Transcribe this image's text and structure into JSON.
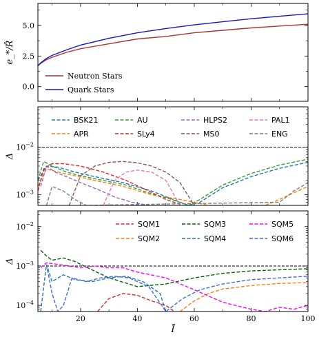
{
  "chart_data": [
    {
      "type": "line",
      "ylabel": "e_*/R̂",
      "xlim": [
        5,
        100
      ],
      "ylim": [
        -1.2,
        6.8
      ],
      "yticks": [
        -0.0,
        2.5,
        5.0
      ],
      "ytick_labels": [
        "0.0",
        "2.5",
        "5.0"
      ],
      "legend": "lower-left",
      "series": [
        {
          "name": "Neutron Stars",
          "color": "#a83232",
          "x": [
            5,
            6,
            8,
            10,
            15,
            20,
            30,
            40,
            50,
            60,
            70,
            80,
            90,
            100
          ],
          "y": [
            1.7,
            1.9,
            2.2,
            2.4,
            2.8,
            3.1,
            3.5,
            3.9,
            4.1,
            4.4,
            4.6,
            4.8,
            4.95,
            5.1
          ]
        },
        {
          "name": "Quark Stars",
          "color": "#1515c8",
          "x": [
            5,
            6,
            8,
            10,
            15,
            20,
            30,
            40,
            50,
            60,
            70,
            80,
            90,
            100
          ],
          "y": [
            1.7,
            1.95,
            2.3,
            2.55,
            3.0,
            3.4,
            3.95,
            4.4,
            4.75,
            5.05,
            5.3,
            5.55,
            5.75,
            5.95
          ]
        }
      ]
    },
    {
      "type": "line",
      "ylabel": "Δ",
      "yscale": "log",
      "xlim": [
        5,
        100
      ],
      "ylim": [
        0.0006,
        0.07
      ],
      "ytick_labels": [
        "10^-3",
        "10^-2"
      ],
      "reference_line": 0.01,
      "legend": "top",
      "series": [
        {
          "name": "BSK21",
          "color": "#1f77b4",
          "x": [
            5,
            8,
            12,
            18,
            25,
            35,
            45,
            55,
            58,
            62,
            70,
            80,
            90,
            100
          ],
          "y": [
            0.002,
            0.004,
            0.0038,
            0.003,
            0.0024,
            0.0018,
            0.0012,
            0.0007,
            0.0006,
            0.0007,
            0.0014,
            0.0024,
            0.0036,
            0.0048
          ]
        },
        {
          "name": "APR",
          "color": "#ff7f0e",
          "x": [
            5,
            8,
            12,
            18,
            25,
            35,
            45,
            55,
            65,
            75,
            85,
            90,
            95,
            100
          ],
          "y": [
            0.0015,
            0.0035,
            0.003,
            0.0025,
            0.002,
            0.0015,
            0.001,
            0.0008,
            0.0006,
            0.0006,
            0.0006,
            0.0008,
            0.0011,
            0.0015
          ]
        },
        {
          "name": "AU",
          "color": "#2ca02c",
          "x": [
            5,
            7,
            10,
            15,
            20,
            28,
            36,
            44,
            52,
            58,
            62,
            70,
            80,
            90,
            100
          ],
          "y": [
            0.002,
            0.005,
            0.004,
            0.003,
            0.0025,
            0.002,
            0.0016,
            0.0011,
            0.0008,
            0.0006,
            0.0008,
            0.0016,
            0.0028,
            0.0042,
            0.0056
          ]
        },
        {
          "name": "SLy4",
          "color": "#d62728",
          "x": [
            5,
            7,
            10,
            14,
            20,
            28,
            36,
            44,
            50,
            56
          ],
          "y": [
            0.0012,
            0.0035,
            0.0045,
            0.0045,
            0.004,
            0.003,
            0.002,
            0.0012,
            0.0008,
            0.0006
          ]
        },
        {
          "name": "HLPS2",
          "color": "#9467bd",
          "x": [
            6,
            8,
            11,
            15,
            20,
            26,
            32,
            38,
            44
          ],
          "y": [
            0.0015,
            0.004,
            0.003,
            0.0024,
            0.0018,
            0.0013,
            0.0009,
            0.0007,
            0.0006
          ]
        },
        {
          "name": "MS0",
          "color": "#8c564b",
          "x": [
            16,
            20,
            25,
            30,
            35,
            40,
            45,
            50,
            55,
            60
          ],
          "y": [
            0.0006,
            0.0025,
            0.004,
            0.0048,
            0.005,
            0.0047,
            0.004,
            0.003,
            0.0018,
            0.0006
          ]
        },
        {
          "name": "PAL1",
          "color": "#e377c2",
          "x": [
            28,
            32,
            36,
            40,
            45,
            50,
            55
          ],
          "y": [
            0.0006,
            0.002,
            0.003,
            0.0033,
            0.003,
            0.002,
            0.0006
          ]
        },
        {
          "name": "ENG",
          "color": "#7f7f7f",
          "x": [
            8,
            10,
            14,
            18,
            22,
            90,
            95,
            100
          ],
          "y": [
            0.0006,
            0.0015,
            0.0012,
            0.0008,
            0.0006,
            0.0007,
            0.0012,
            0.0018
          ]
        }
      ]
    },
    {
      "type": "line",
      "ylabel": "Δ",
      "xlabel": "Ī",
      "yscale": "log",
      "xlim": [
        5,
        100
      ],
      "ylim": [
        7e-05,
        0.025
      ],
      "xticks": [
        20,
        40,
        60,
        80,
        100
      ],
      "ytick_labels": [
        "10^-4",
        "10^-3",
        "10^-2"
      ],
      "reference_line": 0.001,
      "legend": "top-right",
      "series": [
        {
          "name": "SQM1",
          "color": "#d62728",
          "x": [
            26,
            30,
            35,
            40,
            45,
            50,
            53
          ],
          "y": [
            7e-05,
            0.00015,
            0.0002,
            0.00018,
            0.00013,
            0.0001,
            7e-05
          ]
        },
        {
          "name": "SQM2",
          "color": "#ff7f0e",
          "x": [
            55,
            60,
            65,
            70,
            80,
            90,
            100
          ],
          "y": [
            7e-05,
            0.00013,
            0.0002,
            0.00026,
            0.00032,
            0.00036,
            0.00038
          ]
        },
        {
          "name": "SQM3",
          "color": "#006400",
          "x": [
            6,
            8,
            10,
            14,
            18,
            24,
            30,
            40,
            50,
            60,
            70,
            80,
            90,
            100
          ],
          "y": [
            0.0025,
            0.0018,
            0.0014,
            0.0016,
            0.0013,
            0.0008,
            0.0005,
            0.0003,
            0.00035,
            0.0005,
            0.00065,
            0.00075,
            0.0008,
            0.00085
          ]
        },
        {
          "name": "SQM4",
          "color": "#1f77b4",
          "x": [
            6,
            8,
            10,
            14,
            18,
            24,
            30,
            36,
            42,
            48,
            50
          ],
          "y": [
            7e-05,
            0.0011,
            0.0004,
            0.0006,
            0.00045,
            0.0004,
            0.0005,
            0.00055,
            0.0004,
            0.0002,
            7e-05
          ]
        },
        {
          "name": "SQM5",
          "color": "#ff00ff",
          "x": [
            6,
            8,
            12,
            16,
            20,
            25,
            30,
            35,
            40,
            50,
            60,
            70,
            80,
            85,
            90,
            95,
            100
          ],
          "y": [
            0.0009,
            0.0012,
            0.0011,
            0.001,
            0.0009,
            0.001,
            0.0009,
            0.0009,
            0.0007,
            0.0005,
            0.00025,
            0.00012,
            8e-05,
            7e-05,
            9e-05,
            8e-05,
            0.0001
          ]
        },
        {
          "name": "SQM6",
          "color": "#4169e1",
          "x": [
            8,
            10,
            12,
            14,
            17,
            22,
            27,
            32,
            37,
            44,
            50,
            56,
            62,
            70,
            80,
            90,
            100
          ],
          "y": [
            0.0011,
            0.0002,
            7e-05,
            0.0001,
            0.0005,
            0.0004,
            0.0005,
            0.00055,
            0.0005,
            0.0003,
            7e-05,
            0.00015,
            0.00025,
            0.00035,
            0.00045,
            0.0005,
            0.00055
          ]
        }
      ]
    }
  ]
}
